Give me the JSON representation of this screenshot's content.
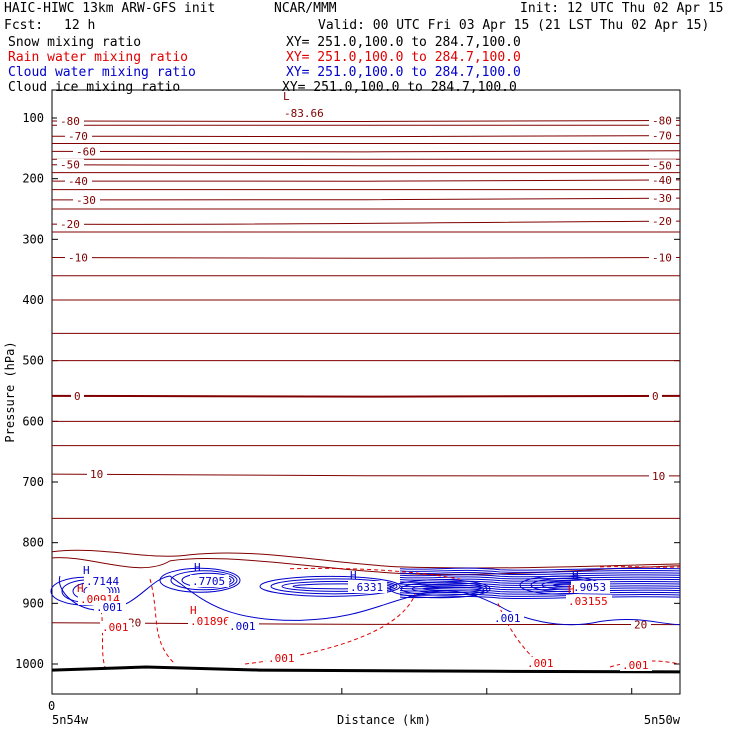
{
  "header": {
    "model": "HAIC-HIWC 13km ARW-GFS init",
    "org": "NCAR/MMM",
    "init": "Init: 12 UTC Thu 02 Apr 15",
    "fcst_label": "Fcst:",
    "fcst_value": "12 h",
    "valid": "Valid: 00 UTC Fri 03 Apr 15 (21 LST Thu 02 Apr 15)"
  },
  "fields": [
    {
      "name": "Snow mixing ratio",
      "xy": "XY= 251.0,100.0 to 284.7,100.0",
      "color": "#000000"
    },
    {
      "name": "Rain water mixing ratio",
      "xy": "XY= 251.0,100.0 to 284.7,100.0",
      "color": "#e00000"
    },
    {
      "name": "Cloud water mixing ratio",
      "xy": "XY= 251.0,100.0 to 284.7,100.0",
      "color": "#0000cc"
    },
    {
      "name": "Cloud ice mixing ratio",
      "xy": "XY= 251.0,100.0 to 284.7,100.0",
      "color": "#000000"
    }
  ],
  "chart_data": {
    "type": "line",
    "xlabel": "Distance (km)",
    "ylabel": "Pressure (hPa)",
    "x_left_label": "5n54w",
    "x_right_label": "5n50w",
    "x_origin_label": "0",
    "y_ticks": [
      100,
      200,
      300,
      400,
      500,
      600,
      700,
      800,
      900,
      1000
    ],
    "ylim": [
      1050,
      50
    ],
    "x_ticks_frac": [
      0,
      0.2308,
      0.4615,
      0.6923,
      0.9231
    ],
    "temperature_isotherms": [
      {
        "label": "-80",
        "left": 105,
        "right": 104,
        "show_right": true
      },
      {
        "label": "-70",
        "left": 130,
        "right": 129,
        "show_right": true
      },
      {
        "label": "-60",
        "left": 155,
        "right": 154,
        "show_right": false
      },
      {
        "label": "-50",
        "left": 177,
        "right": 178,
        "show_right": true
      },
      {
        "label": "-40",
        "left": 204,
        "right": 202,
        "show_right": true
      },
      {
        "label": "-30",
        "left": 235,
        "right": 232,
        "show_right": true
      },
      {
        "label": "-20",
        "left": 275,
        "right": 270,
        "show_right": true
      },
      {
        "label": "-10",
        "left": 330,
        "right": 330,
        "show_right": true
      },
      {
        "label": "0",
        "left": 558,
        "right": 558,
        "show_right": true
      },
      {
        "label": "10",
        "left": 687,
        "right": 690,
        "show_right": true
      },
      {
        "label": "20",
        "left": 932,
        "right": 935,
        "show_right": true
      }
    ],
    "unlabeled_isotherms_hpa": [
      112,
      142,
      168,
      190,
      218,
      250,
      288,
      360,
      400,
      455,
      500,
      600,
      640,
      760
    ],
    "extrema": [
      {
        "kind": "L",
        "value": "-83.66",
        "color": "#800000"
      },
      {
        "kind": "H",
        "value": ".7144",
        "color": "#0000cc"
      },
      {
        "kind": "H",
        "value": ".7705",
        "color": "#0000cc"
      },
      {
        "kind": "H",
        "value": ".6331",
        "color": "#0000cc"
      },
      {
        "kind": "H",
        "value": ".9053",
        "color": "#0000cc"
      },
      {
        "kind": "H",
        "value": ".00914",
        "color": "#e00000"
      },
      {
        "kind": "H",
        "value": ".01896",
        "color": "#e00000"
      },
      {
        "kind": "H",
        "value": ".03155",
        "color": "#e00000"
      }
    ],
    "contour_labels": [
      {
        "text": ".001",
        "color": "#0000cc"
      },
      {
        "text": ".001",
        "color": "#0000cc"
      },
      {
        "text": ".001",
        "color": "#0000cc"
      },
      {
        "text": ".001",
        "color": "#e00000"
      },
      {
        "text": ".001",
        "color": "#e00000"
      },
      {
        "text": ".001",
        "color": "#e00000"
      },
      {
        "text": ".001",
        "color": "#e00000"
      }
    ],
    "terrain_hpa": [
      {
        "x": 0,
        "p": 1010
      },
      {
        "x": 0.15,
        "p": 1005
      },
      {
        "x": 0.33,
        "p": 1010
      },
      {
        "x": 0.7,
        "p": 1012
      },
      {
        "x": 1,
        "p": 1013
      }
    ],
    "colors": {
      "isotherm": "#800000",
      "cloud_water": "#0000cc",
      "rain": "#e00000",
      "terrain": "#000000"
    }
  }
}
